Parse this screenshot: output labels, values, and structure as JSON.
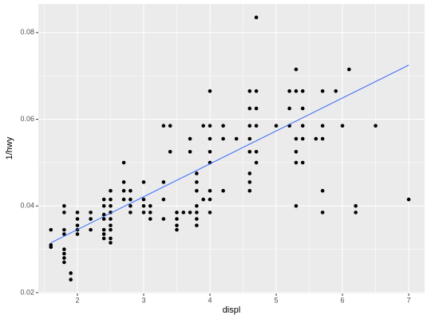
{
  "chart_data": {
    "type": "scatter",
    "x_label": "displ",
    "y_label": "1/hwy",
    "x": [
      1.6,
      1.6,
      1.6,
      1.8,
      1.8,
      1.8,
      1.8,
      1.8,
      1.8,
      1.8,
      1.8,
      1.9,
      1.9,
      2.0,
      2.0,
      2.0,
      2.0,
      2.0,
      2.2,
      2.2,
      2.2,
      2.4,
      2.4,
      2.4,
      2.4,
      2.4,
      2.4,
      2.4,
      2.5,
      2.5,
      2.5,
      2.5,
      2.5,
      2.5,
      2.5,
      2.5,
      2.5,
      2.7,
      2.7,
      2.7,
      2.7,
      2.8,
      2.8,
      2.8,
      2.8,
      3.0,
      3.0,
      3.0,
      3.0,
      3.1,
      3.1,
      3.1,
      3.3,
      3.3,
      3.3,
      3.3,
      3.4,
      3.4,
      3.5,
      3.5,
      3.5,
      3.5,
      3.6,
      3.7,
      3.7,
      3.7,
      3.8,
      3.8,
      3.8,
      3.8,
      3.8,
      3.8,
      3.8,
      3.9,
      3.9,
      4.0,
      4.0,
      4.0,
      4.0,
      4.0,
      4.0,
      4.0,
      4.0,
      4.2,
      4.2,
      4.2,
      4.4,
      4.6,
      4.6,
      4.6,
      4.6,
      4.6,
      4.6,
      4.6,
      4.6,
      4.7,
      4.7,
      4.7,
      4.7,
      4.7,
      4.7,
      5.0,
      5.2,
      5.2,
      5.2,
      5.3,
      5.3,
      5.3,
      5.3,
      5.3,
      5.3,
      5.4,
      5.4,
      5.4,
      5.4,
      5.4,
      5.6,
      5.7,
      5.7,
      5.7,
      5.7,
      5.7,
      5.9,
      6.0,
      6.1,
      6.2,
      6.2,
      6.5,
      7.0
    ],
    "values": [
      0.0345,
      0.031,
      0.0305,
      0.04,
      0.0385,
      0.0345,
      0.0335,
      0.03,
      0.029,
      0.028,
      0.027,
      0.0245,
      0.023,
      0.0385,
      0.037,
      0.0355,
      0.0345,
      0.0335,
      0.0385,
      0.037,
      0.0345,
      0.0415,
      0.04,
      0.038,
      0.037,
      0.0345,
      0.0335,
      0.0325,
      0.0435,
      0.0415,
      0.04,
      0.0385,
      0.037,
      0.0355,
      0.0345,
      0.0325,
      0.0315,
      0.05,
      0.0455,
      0.0435,
      0.0415,
      0.0435,
      0.0415,
      0.04,
      0.0385,
      0.0455,
      0.0415,
      0.04,
      0.0385,
      0.04,
      0.0385,
      0.037,
      0.0585,
      0.0455,
      0.0415,
      0.037,
      0.0585,
      0.0525,
      0.0385,
      0.037,
      0.0355,
      0.0345,
      0.0385,
      0.0555,
      0.0525,
      0.0385,
      0.0475,
      0.0455,
      0.0435,
      0.04,
      0.0385,
      0.037,
      0.0355,
      0.0585,
      0.0415,
      0.0665,
      0.0585,
      0.0555,
      0.0525,
      0.05,
      0.0435,
      0.0415,
      0.0385,
      0.0585,
      0.0555,
      0.0435,
      0.0555,
      0.0665,
      0.0625,
      0.0585,
      0.0555,
      0.0525,
      0.0475,
      0.0455,
      0.0435,
      0.0835,
      0.0665,
      0.0625,
      0.0585,
      0.0525,
      0.05,
      0.0585,
      0.0665,
      0.0625,
      0.0585,
      0.0715,
      0.0665,
      0.0555,
      0.0525,
      0.05,
      0.04,
      0.0665,
      0.0625,
      0.0585,
      0.0555,
      0.05,
      0.0555,
      0.0665,
      0.0585,
      0.0555,
      0.0435,
      0.0385,
      0.0665,
      0.0585,
      0.0715,
      0.04,
      0.0385,
      0.0585,
      0.0415
    ],
    "color": "#000000",
    "trend": {
      "color": "#3366ff",
      "x": [
        1.6,
        7.0
      ],
      "values": [
        0.0315,
        0.0725
      ]
    },
    "xlim": [
      1.41,
      7.24
    ],
    "ylim": [
      0.0198,
      0.0866
    ],
    "xticks": [
      2,
      3,
      4,
      5,
      6,
      7
    ],
    "yticks": [
      0.02,
      0.04,
      0.06,
      0.08
    ],
    "xminor": [
      1.5,
      2.5,
      3.5,
      4.5,
      5.5,
      6.5
    ],
    "yminor": [
      0.03,
      0.05,
      0.07
    ],
    "grid": true
  }
}
